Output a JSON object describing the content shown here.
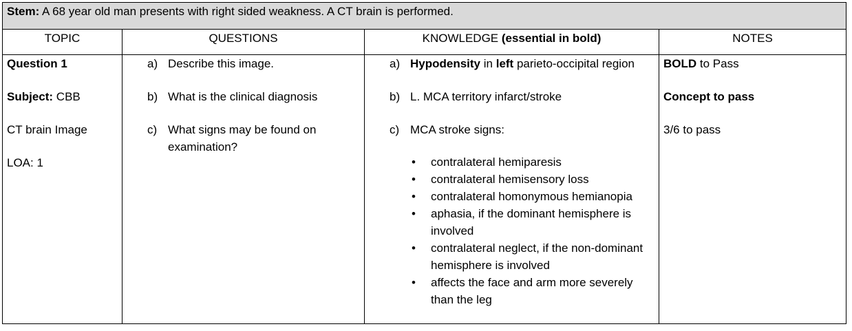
{
  "stem": {
    "label": "Stem:",
    "text": " A 68 year old man presents with right sided weakness. A CT brain is performed."
  },
  "headers": {
    "topic": "TOPIC",
    "questions": "QUESTIONS",
    "knowledge_prefix": "KNOWLEDGE ",
    "knowledge_bold": "(essential in bold)",
    "notes": "NOTES"
  },
  "topic": {
    "question": "Question 1",
    "subject_label": "Subject:",
    "subject_value": " CBB",
    "image": "CT brain Image",
    "loa": "LOA: 1"
  },
  "questions": [
    {
      "letter": "a)",
      "text": "Describe this image."
    },
    {
      "letter": "b)",
      "text": "What is the clinical diagnosis"
    },
    {
      "letter": "c)",
      "text": "What signs may be found on examination?"
    }
  ],
  "knowledge": {
    "a": {
      "letter": "a)",
      "bold1": "Hypodensity",
      "mid": " in ",
      "bold2": "left",
      "rest": " parieto-occipital region"
    },
    "b": {
      "letter": "b)",
      "text": "L. MCA territory infarct/stroke"
    },
    "c": {
      "letter": "c)",
      "text": "MCA stroke signs:",
      "bullet": "•",
      "signs": [
        "contralateral hemiparesis",
        "contralateral hemisensory loss",
        "contralateral homonymous hemianopia",
        "aphasia, if the dominant hemisphere is involved",
        "contralateral neglect, if the non-dominant hemisphere is involved",
        "affects the face and arm more severely than the leg"
      ]
    }
  },
  "notes": {
    "bold_label": "BOLD",
    "bold_rest": " to Pass",
    "concept": "Concept to pass",
    "score": "3/6 to pass"
  }
}
